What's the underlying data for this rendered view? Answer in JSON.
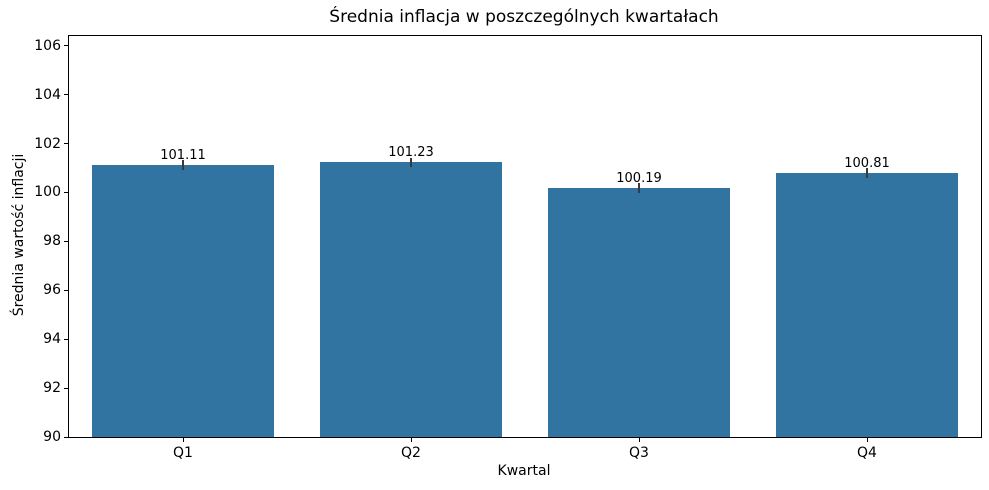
{
  "chart_data": {
    "type": "bar",
    "title": "Średnia inflacja w poszczególnych kwartałach",
    "xlabel": "Kwartal",
    "ylabel": "Średnia wartość inflacji",
    "categories": [
      "Q1",
      "Q2",
      "Q3",
      "Q4"
    ],
    "values": [
      101.11,
      101.23,
      100.19,
      100.81
    ],
    "value_labels": [
      "101.11",
      "101.23",
      "100.19",
      "100.81"
    ],
    "errors": [
      0.2,
      0.2,
      0.2,
      0.2
    ],
    "ylim": [
      90,
      106.4
    ],
    "yticks": [
      90,
      92,
      94,
      96,
      98,
      100,
      102,
      104,
      106
    ],
    "grid": false,
    "bar_color": "#3274a1",
    "error_bar_color": "#3a3a3a",
    "axis_color": "#000000",
    "text_color": "#000000"
  }
}
